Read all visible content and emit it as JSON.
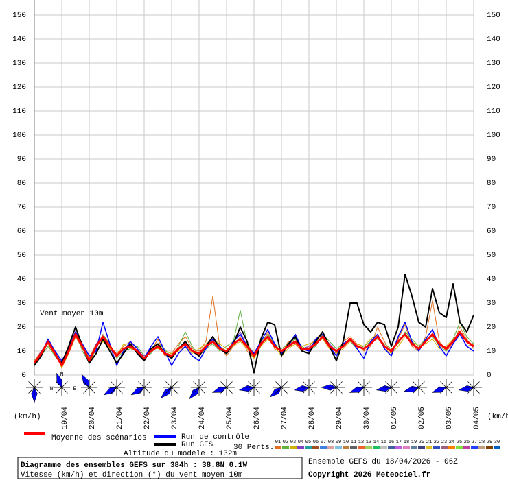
{
  "chart_data": {
    "type": "line",
    "x": [
      0,
      6,
      12,
      18,
      24,
      30,
      36,
      42,
      48,
      54,
      60,
      66,
      72,
      78,
      84,
      90,
      96,
      102,
      108,
      114,
      120,
      126,
      132,
      138,
      144,
      150,
      156,
      162,
      168,
      174,
      180,
      186,
      192,
      198,
      204,
      210,
      216,
      222,
      228,
      234,
      240,
      246,
      252,
      258,
      264,
      270,
      276,
      282,
      288,
      294,
      300,
      306,
      312,
      318,
      324,
      330,
      336,
      342,
      348,
      354,
      360,
      366,
      372,
      378,
      384
    ],
    "xlim": [
      0,
      384
    ],
    "xticks": [
      {
        "value": 24,
        "label": "19/04"
      },
      {
        "value": 48,
        "label": "20/04"
      },
      {
        "value": 72,
        "label": "21/04"
      },
      {
        "value": 96,
        "label": "22/04"
      },
      {
        "value": 120,
        "label": "23/04"
      },
      {
        "value": 144,
        "label": "24/04"
      },
      {
        "value": 168,
        "label": "25/04"
      },
      {
        "value": 192,
        "label": "26/04"
      },
      {
        "value": 216,
        "label": "27/04"
      },
      {
        "value": 240,
        "label": "28/04"
      },
      {
        "value": 264,
        "label": "29/04"
      },
      {
        "value": 288,
        "label": "30/04"
      },
      {
        "value": 312,
        "label": "01/05"
      },
      {
        "value": 336,
        "label": "02/05"
      },
      {
        "value": 360,
        "label": "03/05"
      },
      {
        "value": 384,
        "label": "04/05"
      }
    ],
    "ylim": [
      0,
      150
    ],
    "yticks": [
      0,
      10,
      20,
      30,
      40,
      50,
      60,
      70,
      80,
      90,
      100,
      110,
      120,
      130,
      140,
      150
    ],
    "grid": true,
    "y_unit": "(km/h)",
    "annotation": "Vent moyen 10m",
    "series": [
      {
        "name": "Moyenne des scénarios",
        "color": "#ff0000",
        "width": 3,
        "values": [
          5,
          9,
          14,
          9,
          4,
          10,
          17,
          12,
          6,
          12,
          16,
          12,
          8,
          11,
          12,
          10,
          7,
          10,
          12,
          9,
          8,
          11,
          13,
          10,
          9,
          12,
          14,
          11,
          10,
          13,
          15,
          12,
          8,
          13,
          16,
          12,
          10,
          12,
          14,
          11,
          11,
          13,
          16,
          12,
          10,
          12,
          15,
          12,
          11,
          13,
          16,
          12,
          10,
          14,
          17,
          13,
          11,
          14,
          17,
          13,
          11,
          14,
          18,
          14,
          12
        ]
      },
      {
        "name": "Run de contrôle",
        "color": "#0000ff",
        "width": 1.5,
        "values": [
          5,
          9,
          15,
          10,
          6,
          11,
          18,
          13,
          8,
          10,
          22,
          13,
          4,
          10,
          14,
          11,
          7,
          12,
          16,
          10,
          4,
          9,
          12,
          8,
          6,
          11,
          15,
          12,
          9,
          14,
          17,
          12,
          9,
          14,
          19,
          13,
          9,
          12,
          17,
          11,
          10,
          15,
          17,
          12,
          8,
          13,
          15,
          11,
          7,
          14,
          17,
          11,
          8,
          16,
          22,
          14,
          10,
          15,
          19,
          12,
          8,
          13,
          17,
          12,
          10
        ]
      },
      {
        "name": "Run GFS",
        "color": "#000000",
        "width": 2,
        "values": [
          4,
          8,
          14,
          9,
          5,
          12,
          20,
          12,
          5,
          9,
          15,
          10,
          5,
          9,
          13,
          9,
          6,
          11,
          13,
          9,
          7,
          11,
          14,
          10,
          8,
          12,
          16,
          11,
          9,
          13,
          20,
          14,
          1,
          15,
          22,
          21,
          8,
          13,
          16,
          10,
          9,
          14,
          18,
          12,
          6,
          14,
          30,
          30,
          21,
          18,
          22,
          21,
          12,
          20,
          42,
          33,
          22,
          20,
          36,
          26,
          24,
          38,
          22,
          18,
          25
        ]
      }
    ],
    "perturbations_label": "30 Perts.",
    "perturbations": [
      {
        "name": "01",
        "color": "#e07020",
        "values": [
          6,
          10,
          13,
          8,
          5,
          9,
          16,
          11,
          7,
          13,
          15,
          11,
          9,
          12,
          14,
          9,
          6,
          10,
          15,
          8,
          9,
          13,
          16,
          11,
          10,
          14,
          33,
          12,
          8,
          12,
          16,
          10,
          7,
          12,
          18,
          11,
          9,
          14,
          13,
          10,
          12,
          15,
          18,
          11,
          9,
          14,
          16,
          13,
          10,
          12,
          20,
          14,
          9,
          15,
          21,
          12,
          10,
          16,
          31,
          14,
          10,
          13,
          20,
          15,
          11
        ]
      },
      {
        "name": "02",
        "color": "#60b040",
        "values": [
          5,
          8,
          12,
          8,
          4,
          11,
          18,
          10,
          5,
          11,
          17,
          13,
          7,
          10,
          11,
          12,
          8,
          9,
          13,
          11,
          7,
          12,
          18,
          12,
          8,
          11,
          13,
          10,
          12,
          14,
          27,
          13,
          9,
          14,
          17,
          13,
          11,
          13,
          15,
          12,
          10,
          12,
          17,
          14,
          11,
          13,
          14,
          11,
          12,
          14,
          15,
          13,
          11,
          13,
          18,
          15,
          12,
          15,
          16,
          12,
          10,
          15,
          22,
          16,
          13
        ]
      },
      {
        "name": "03",
        "color": "#d0b000",
        "values": [
          4,
          9,
          15,
          10,
          3,
          9,
          16,
          13,
          7,
          10,
          14,
          11,
          8,
          13,
          11,
          10,
          6,
          11,
          11,
          10,
          9,
          10,
          12,
          9,
          11,
          13,
          15,
          13,
          11,
          12,
          14,
          11,
          7,
          12,
          15,
          12,
          8,
          11,
          13,
          12,
          13,
          14,
          15,
          11,
          9,
          11,
          14,
          13,
          12,
          15,
          17,
          11,
          9,
          12,
          16,
          14,
          12,
          13,
          15,
          11,
          12,
          15,
          17,
          12,
          13
        ]
      },
      {
        "name": "04",
        "color": "#8040c0",
        "values": [
          5,
          10,
          14,
          9,
          5,
          10,
          17,
          12,
          6,
          13,
          16,
          12,
          8,
          11,
          13,
          10,
          8,
          10,
          12,
          9,
          8,
          11,
          14,
          10,
          9,
          12,
          14,
          11,
          10,
          14,
          18,
          12,
          8,
          13,
          16,
          12,
          10,
          12,
          14,
          11,
          12,
          13,
          16,
          13,
          10,
          12,
          15,
          12,
          11,
          13,
          16,
          12,
          10,
          14,
          17,
          13,
          11,
          14,
          17,
          13,
          11,
          14,
          18,
          14,
          12
        ]
      },
      {
        "name": "05",
        "color": "#20a0a0"
      },
      {
        "name": "06",
        "color": "#a05020"
      },
      {
        "name": "07",
        "color": "#4080e0"
      },
      {
        "name": "08",
        "color": "#e0a0a0"
      },
      {
        "name": "09",
        "color": "#80c0e0"
      },
      {
        "name": "10",
        "color": "#c08040"
      },
      {
        "name": "11",
        "color": "#606060"
      },
      {
        "name": "12",
        "color": "#f06030"
      },
      {
        "name": "13",
        "color": "#a0d060"
      },
      {
        "name": "14",
        "color": "#20c060"
      },
      {
        "name": "15",
        "color": "#c0c0c0"
      },
      {
        "name": "16",
        "color": "#4060a0"
      },
      {
        "name": "17",
        "color": "#c060e0"
      },
      {
        "name": "18",
        "color": "#e080c0"
      },
      {
        "name": "19",
        "color": "#6080a0"
      },
      {
        "name": "20",
        "color": "#404080"
      },
      {
        "name": "21",
        "color": "#e0c020"
      },
      {
        "name": "22",
        "color": "#3050c0"
      },
      {
        "name": "23",
        "color": "#a06080"
      },
      {
        "name": "24",
        "color": "#ff8000"
      },
      {
        "name": "25",
        "color": "#80e040"
      },
      {
        "name": "26",
        "color": "#c040a0"
      },
      {
        "name": "27",
        "color": "#2040ff"
      },
      {
        "name": "28",
        "color": "#c0a080"
      },
      {
        "name": "29",
        "color": "#804000"
      },
      {
        "name": "30",
        "color": "#0060c0"
      }
    ],
    "wind_direction_x": [
      0,
      24,
      48,
      72,
      96,
      120,
      144,
      168,
      192,
      216,
      240,
      264,
      288,
      312,
      336,
      360,
      384
    ],
    "wind_direction": [
      0,
      200,
      210,
      300,
      300,
      315,
      320,
      290,
      280,
      310,
      280,
      270,
      290,
      280,
      285,
      290,
      280
    ],
    "compass": [
      "N",
      "W",
      "E"
    ],
    "altitude": "Altitude du modele : 132m",
    "box_title": "Diagramme des ensembles GEFS sur 384h : 38.8N 0.1W",
    "box_subtitle": "Vitesse (km/h) et direction (°) du vent moyen 10m",
    "run_info": "Ensemble GEFS du 18/04/2026 - 06Z",
    "copyright": "Copyright 2026 Meteociel.fr"
  }
}
